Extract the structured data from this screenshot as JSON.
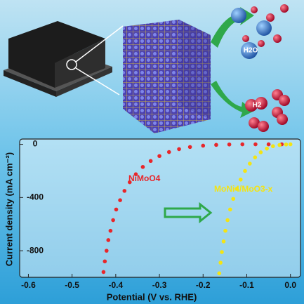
{
  "chart_data": {
    "type": "scatter",
    "xlabel": "Potential (V vs. RHE)",
    "ylabel": "Current density (mA cm⁻²)",
    "xlim": [
      -0.62,
      0.023
    ],
    "ylim": [
      -1000,
      40
    ],
    "xticks": [
      -0.6,
      -0.5,
      -0.4,
      -0.3,
      -0.2,
      -0.1,
      {
        "value": 0,
        "label": "0.0"
      }
    ],
    "yticks": [
      0,
      -400,
      -800
    ],
    "series": [
      {
        "name": "NiMoO4",
        "color": "#e8262a",
        "x": [
          -0.428,
          -0.425,
          -0.421,
          -0.417,
          -0.412,
          -0.406,
          -0.399,
          -0.39,
          -0.38,
          -0.368,
          -0.354,
          -0.338,
          -0.32,
          -0.3,
          -0.278,
          -0.255,
          -0.23,
          -0.2,
          -0.17,
          -0.14,
          -0.11,
          -0.08,
          -0.05,
          -0.02
        ],
        "values": [
          -960,
          -880,
          -800,
          -720,
          -650,
          -570,
          -490,
          -420,
          -350,
          -285,
          -225,
          -170,
          -125,
          -88,
          -58,
          -36,
          -20,
          -10,
          -4,
          -1,
          0,
          0,
          0,
          0
        ]
      },
      {
        "name": "MoNi4/MoO3-x",
        "color": "#f4e413",
        "x": [
          -0.163,
          -0.16,
          -0.157,
          -0.153,
          -0.149,
          -0.144,
          -0.138,
          -0.131,
          -0.123,
          -0.114,
          -0.104,
          -0.093,
          -0.081,
          -0.068,
          -0.054,
          -0.04,
          -0.025,
          -0.01,
          0.0
        ],
        "values": [
          -970,
          -890,
          -810,
          -730,
          -650,
          -570,
          -490,
          -410,
          -335,
          -265,
          -200,
          -145,
          -98,
          -60,
          -32,
          -14,
          -5,
          -1,
          0
        ]
      }
    ]
  },
  "illustration": {
    "labels": [
      "H2O",
      "H2"
    ]
  }
}
